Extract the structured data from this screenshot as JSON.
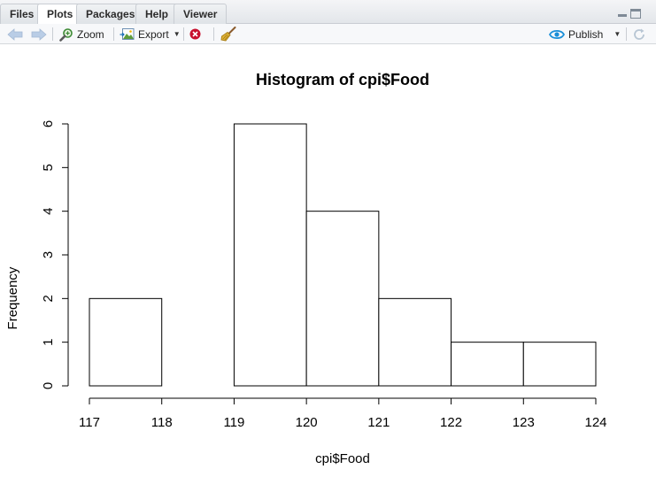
{
  "tabs": [
    {
      "label": "Files",
      "active": false
    },
    {
      "label": "Plots",
      "active": true
    },
    {
      "label": "Packages",
      "active": false
    },
    {
      "label": "Help",
      "active": false
    },
    {
      "label": "Viewer",
      "active": false
    }
  ],
  "toolbar": {
    "zoom_label": "Zoom",
    "export_label": "Export",
    "publish_label": "Publish"
  },
  "icons": {
    "back": "arrow-left-icon",
    "forward": "arrow-right-icon",
    "zoom": "magnifier-icon",
    "export": "export-image-icon",
    "remove": "remove-plot-icon",
    "clear": "broom-icon",
    "publish": "publish-icon",
    "refresh": "refresh-icon"
  },
  "colors": {
    "accent": "#1a8fd8",
    "remove_red": "#c8102e"
  },
  "chart_data": {
    "type": "histogram",
    "title": "Histogram of cpi$Food",
    "xlabel": "cpi$Food",
    "ylabel": "Frequency",
    "bins": [
      {
        "from": 117,
        "to": 118,
        "count": 2
      },
      {
        "from": 118,
        "to": 119,
        "count": 0
      },
      {
        "from": 119,
        "to": 120,
        "count": 6
      },
      {
        "from": 120,
        "to": 121,
        "count": 4
      },
      {
        "from": 121,
        "to": 122,
        "count": 2
      },
      {
        "from": 122,
        "to": 123,
        "count": 1
      },
      {
        "from": 123,
        "to": 124,
        "count": 1
      }
    ],
    "xticks": [
      117,
      118,
      119,
      120,
      121,
      122,
      123,
      124
    ],
    "yticks": [
      0,
      1,
      2,
      3,
      4,
      5,
      6
    ],
    "xlim": [
      117,
      124
    ],
    "ylim": [
      0,
      6
    ],
    "grid": false,
    "legend": false
  }
}
